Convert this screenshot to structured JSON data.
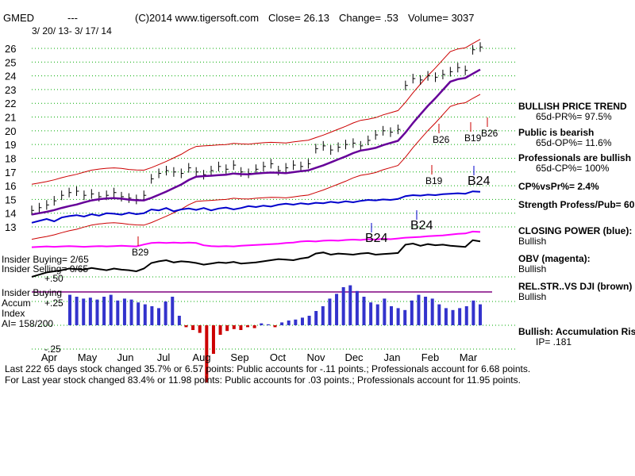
{
  "header": {
    "symbol": "GMED",
    "dashes": "---",
    "copyright": "(C)2014 www.tigersoft.com",
    "close": "Close=  26.13",
    "change": "Change= .53",
    "volume": "Volume= 3037",
    "date_range": "3/ 20/ 13-  3/ 17/ 14"
  },
  "side_panel": [
    {
      "title": "BULLISH PRICE TREND",
      "value": "65d-PR%= 97.5%"
    },
    {
      "title": "Public is bearish",
      "value": "65d-OP%= 11.6%"
    },
    {
      "title": "Professionals are bullish",
      "value": "65d-CP%= 100%"
    },
    {
      "title": "CP%vsPr%=  2.4%",
      "value": ""
    },
    {
      "title": "Strength Profess/Pub= 60",
      "value": ""
    },
    {
      "title": "CLOSING POWER (blue):",
      "value": "Bullish"
    },
    {
      "title": "OBV (magenta):",
      "value": "Bullish"
    },
    {
      "title": "REL.STR..VS DJI (brown)",
      "value": "Bullish"
    },
    {
      "title": "Bullish: Accumulation Risi",
      "value": "IP=  .181"
    }
  ],
  "indicator_labels": {
    "insider_buying_top": "Insider Buying= 2/65",
    "insider_selling": "Insider Selling= 0/65",
    "plus50": "+.50",
    "insider_buying_mid": "Insider Buying",
    "accum": "Accum",
    "plus25": "+.25",
    "index": "Index",
    "ai": "AI= 158/200",
    "minus25": "-.25"
  },
  "footer": {
    "line1": "Last 222 65 days stock changed  35.7% or  6.57 points:  Public accounts for -.11 points.;  Professionals account for  6.68 points.",
    "line2": "For Last year stock changed  83.4% or  11.98 points:  Public accounts for  .03 points.;  Professionals account for  11.95 points."
  },
  "colors": {
    "price": "#000000",
    "bands": "#cc0000",
    "ma": "#660099",
    "closing_power": "#0000cc",
    "obv": "#ff00ff",
    "rel_str": "#000000",
    "accum_bars": "#3333cc",
    "accum_neg": "#cc0000",
    "gridline": "#00aa00",
    "purple_line": "#800080"
  },
  "chart_data": {
    "type": "line",
    "title": "GMED",
    "ylim": [
      13,
      26.8
    ],
    "y_ticks": [
      "26",
      "25",
      "24",
      "23",
      "22",
      "21",
      "20",
      "19",
      "18",
      "17",
      "16",
      "15",
      "14",
      "13"
    ],
    "x_ticks": [
      "Apr",
      "May",
      "Jun",
      "Jul",
      "Aug",
      "Sep",
      "Oct",
      "Nov",
      "Dec",
      "Jan",
      "Feb",
      "Mar"
    ],
    "price_close": [
      14.2,
      14.4,
      14.6,
      14.9,
      15.3,
      15.5,
      15.6,
      15.3,
      15.4,
      15.2,
      15.3,
      15.5,
      15.2,
      15.1,
      15.0,
      15.3,
      16.5,
      16.9,
      17.1,
      17.0,
      16.9,
      17.3,
      17.0,
      16.8,
      17.1,
      17.4,
      17.2,
      17.5,
      17.0,
      16.9,
      17.2,
      17.4,
      17.6,
      17.1,
      17.3,
      17.5,
      17.4,
      17.6,
      18.7,
      18.9,
      18.6,
      18.8,
      19.0,
      19.1,
      18.9,
      19.3,
      19.7,
      20.0,
      19.9,
      20.1,
      23.3,
      23.8,
      23.7,
      24.0,
      23.9,
      24.1,
      24.3,
      24.6,
      24.4,
      25.9,
      26.1
    ],
    "series": [
      {
        "name": "CLOSING POWER (blue)",
        "values": [
          0.32,
          0.36,
          0.4,
          0.35,
          0.43,
          0.46,
          0.48,
          0.45,
          0.5,
          0.47,
          0.52,
          0.51,
          0.49,
          0.53,
          0.5,
          0.52,
          0.6,
          0.58,
          0.63,
          0.56,
          0.6,
          0.62,
          0.59,
          0.63,
          0.58,
          0.62,
          0.64,
          0.6,
          0.63,
          0.67,
          0.65,
          0.68,
          0.66,
          0.7,
          0.72,
          0.7,
          0.73,
          0.71,
          0.74,
          0.73,
          0.76,
          0.74,
          0.77,
          0.75,
          0.78,
          0.8,
          0.79,
          0.81,
          0.8,
          0.82,
          0.88,
          0.9,
          0.89,
          0.91,
          0.9,
          0.92,
          0.93,
          0.94,
          0.93,
          0.98,
          0.97
        ]
      },
      {
        "name": "OBV (magenta)",
        "values": [
          0.55,
          0.56,
          0.57,
          0.56,
          0.57,
          0.58,
          0.57,
          0.56,
          0.57,
          0.58,
          0.57,
          0.58,
          0.59,
          0.58,
          0.57,
          0.62,
          0.66,
          0.67,
          0.66,
          0.67,
          0.66,
          0.67,
          0.66,
          0.6,
          0.58,
          0.57,
          0.58,
          0.57,
          0.59,
          0.6,
          0.61,
          0.62,
          0.63,
          0.64,
          0.66,
          0.67,
          0.7,
          0.71,
          0.7,
          0.72,
          0.73,
          0.72,
          0.74,
          0.75,
          0.74,
          0.76,
          0.75,
          0.77,
          0.76,
          0.78,
          0.8,
          0.81,
          0.82,
          0.84,
          0.85,
          0.86,
          0.88,
          0.9,
          0.91,
          0.96,
          0.95
        ]
      },
      {
        "name": "REL.STR..VS DJI (brown)",
        "values": [
          0.3,
          0.34,
          0.38,
          0.4,
          0.42,
          0.45,
          0.44,
          0.43,
          0.46,
          0.44,
          0.42,
          0.45,
          0.43,
          0.42,
          0.4,
          0.45,
          0.55,
          0.58,
          0.6,
          0.56,
          0.58,
          0.57,
          0.55,
          0.52,
          0.54,
          0.56,
          0.55,
          0.57,
          0.54,
          0.55,
          0.56,
          0.58,
          0.6,
          0.62,
          0.61,
          0.6,
          0.63,
          0.65,
          0.72,
          0.74,
          0.7,
          0.72,
          0.71,
          0.7,
          0.72,
          0.73,
          0.7,
          0.71,
          0.72,
          0.73,
          0.88,
          0.9,
          0.86,
          0.89,
          0.87,
          0.88,
          0.86,
          0.85,
          0.84,
          0.96,
          0.94
        ]
      }
    ],
    "accumulation_index": [
      0.32,
      0.3,
      0.28,
      0.29,
      0.27,
      0.3,
      0.32,
      0.26,
      0.28,
      0.27,
      0.24,
      0.22,
      0.2,
      0.18,
      0.25,
      0.3,
      0.1,
      -0.02,
      -0.05,
      -0.08,
      -0.6,
      -0.3,
      -0.1,
      -0.06,
      -0.04,
      -0.05,
      -0.02,
      -0.03,
      0.02,
      0.01,
      -0.02,
      0.03,
      0.05,
      0.06,
      0.08,
      0.1,
      0.15,
      0.2,
      0.28,
      0.33,
      0.4,
      0.42,
      0.36,
      0.3,
      0.24,
      0.22,
      0.28,
      0.2,
      0.18,
      0.16,
      0.26,
      0.32,
      0.3,
      0.28,
      0.22,
      0.18,
      0.16,
      0.18,
      0.2,
      0.26,
      0.22
    ],
    "signals": [
      "B29",
      "B26",
      "B26",
      "B19",
      "B19",
      "B24",
      "B24",
      "B24"
    ]
  }
}
